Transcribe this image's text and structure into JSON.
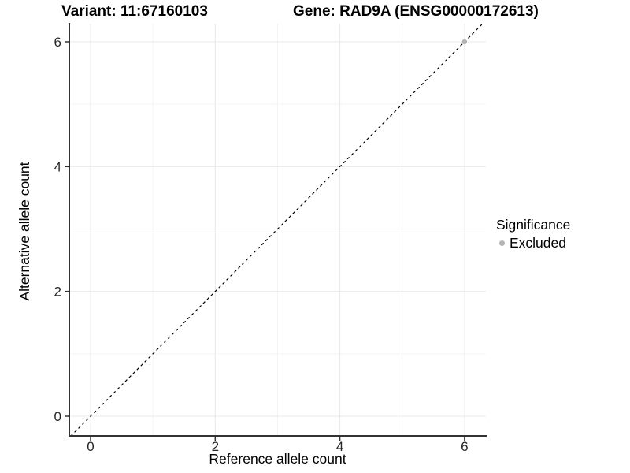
{
  "chart_data": {
    "type": "scatter",
    "title_left": "Variant: 11:67160103",
    "title_right": "Gene: RAD9A (ENSG00000172613)",
    "xlabel": "Reference allele count",
    "ylabel": "Alternative allele count",
    "xlim": [
      -0.32,
      6.3
    ],
    "ylim": [
      -0.32,
      6.3
    ],
    "x_major_ticks": [
      0,
      2,
      4,
      6
    ],
    "y_major_ticks": [
      0,
      2,
      4,
      6
    ],
    "x_minor_gridlines": [
      1,
      3,
      5
    ],
    "y_minor_gridlines": [
      1,
      3,
      5
    ],
    "grid": true,
    "reference_line": {
      "type": "identity",
      "equation": "y = x",
      "style": "dashed",
      "from": [
        -0.32,
        -0.32
      ],
      "to": [
        6.3,
        6.3
      ],
      "color": "#000000"
    },
    "series": [
      {
        "name": "Excluded",
        "color": "#b3b3b3",
        "points": [
          {
            "x": 6,
            "y": 6
          }
        ]
      }
    ],
    "legend": {
      "title": "Significance",
      "position": "right",
      "entries": [
        {
          "label": "Excluded",
          "color": "#b3b3b3",
          "marker": "circle"
        }
      ]
    }
  },
  "colors": {
    "background": "#ffffff",
    "grid_major": "#e8e8e8",
    "grid_minor": "#f4f4f4",
    "axis_line": "#333333",
    "tick_mark": "#333333",
    "tick_label": "#262626"
  }
}
